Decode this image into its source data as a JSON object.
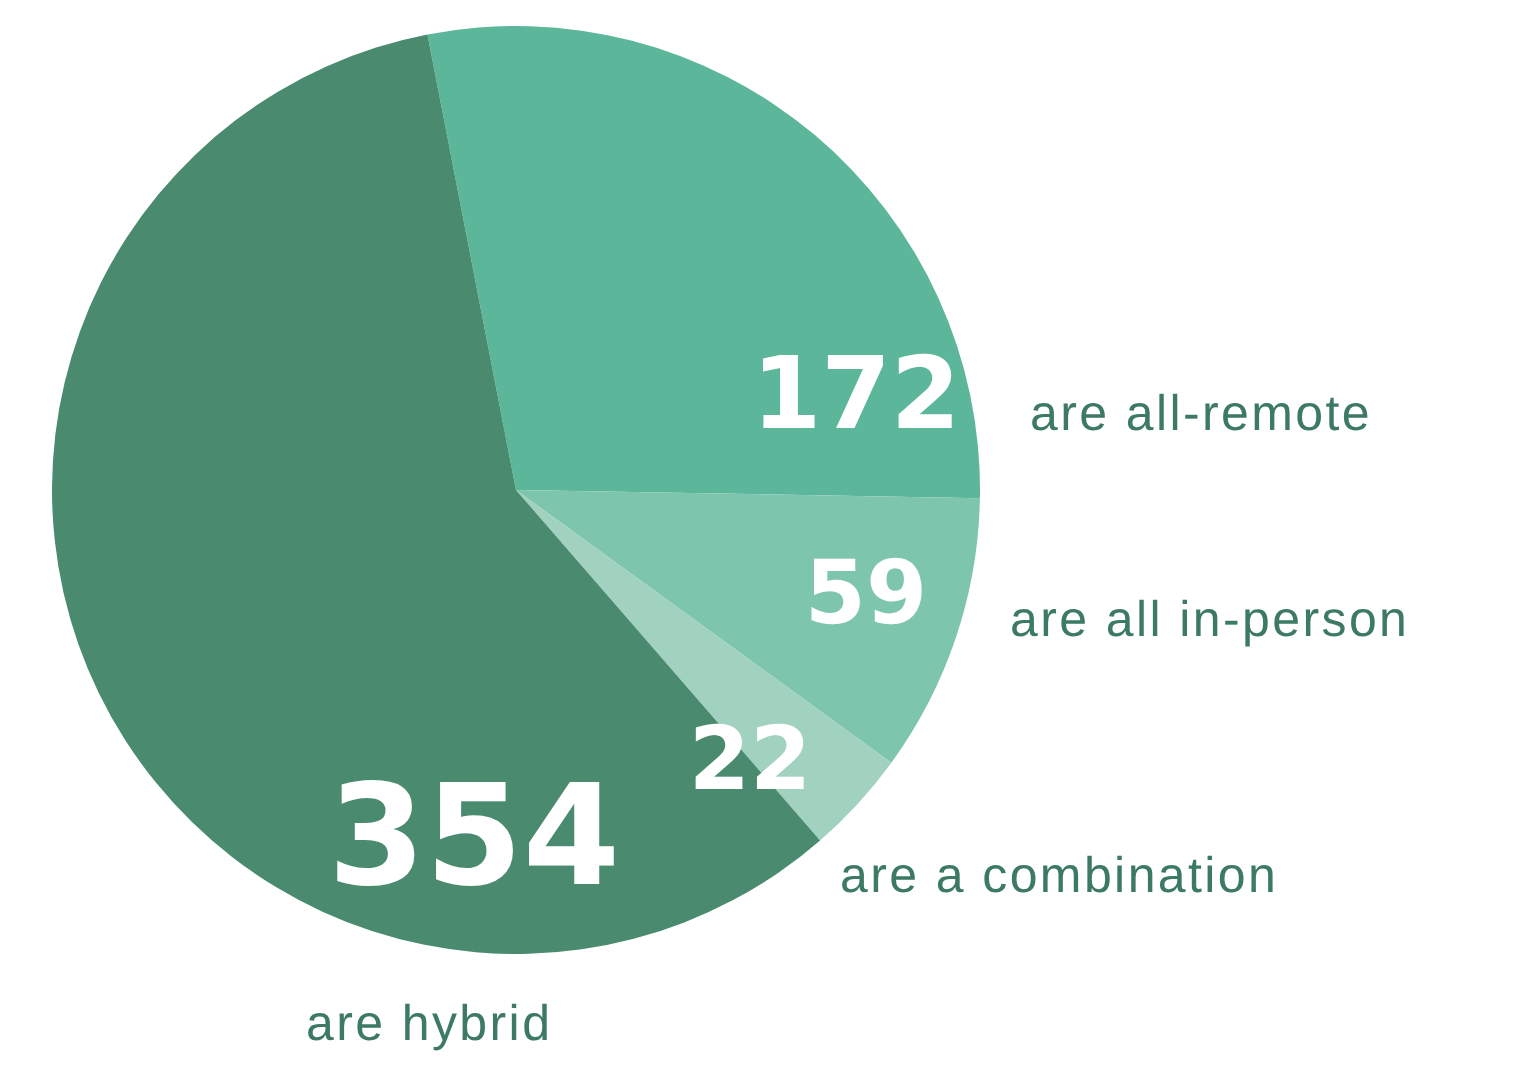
{
  "chart_data": {
    "type": "pie",
    "categories": [
      "are all-remote",
      "are all in-person",
      "are a combination",
      "are hybrid"
    ],
    "values": [
      172,
      59,
      22,
      354
    ],
    "colors": [
      "#5bb69a",
      "#7ec5ad",
      "#a1d1bf",
      "#4a8b70"
    ],
    "data_labels": true
  }
}
